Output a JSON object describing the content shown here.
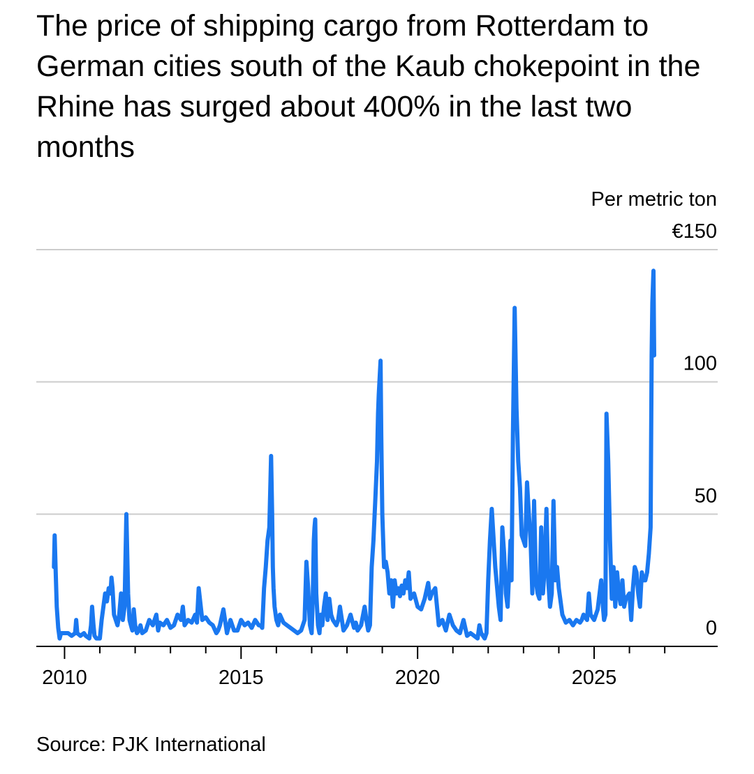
{
  "chart_data": {
    "type": "line",
    "title": "The price of shipping cargo from Rotterdam to German cities south of the Kaub chokepoint in the Rhine has surged about 400% in the last two months",
    "ylabel": "Per metric ton",
    "ylim": [
      0,
      150
    ],
    "xlim": [
      2009.2,
      2028.5
    ],
    "y_ticks": [
      {
        "value": 0,
        "label": "0"
      },
      {
        "value": 50,
        "label": "50"
      },
      {
        "value": 100,
        "label": "100"
      },
      {
        "value": 150,
        "label": "€150"
      }
    ],
    "x_major_ticks": [
      {
        "value": 2010,
        "label": "2010"
      },
      {
        "value": 2015,
        "label": "2015"
      },
      {
        "value": 2020,
        "label": "2020"
      },
      {
        "value": 2025,
        "label": "2025"
      }
    ],
    "x_minor_ticks": [
      2011,
      2012,
      2013,
      2014,
      2016,
      2017,
      2018,
      2019,
      2021,
      2022,
      2023,
      2024,
      2026,
      2027
    ],
    "grid": true,
    "legend": "none",
    "line_color": "#1a78f0",
    "series": [
      {
        "x": [
          2009.7,
          2009.72,
          2009.75,
          2009.78,
          2009.82,
          2009.86,
          2009.9,
          2010.0,
          2010.1,
          2010.2,
          2010.3,
          2010.33,
          2010.36,
          2010.45,
          2010.55,
          2010.6,
          2010.7,
          2010.75,
          2010.78,
          2010.82,
          2010.85,
          2010.9,
          2011.0,
          2011.05,
          2011.1,
          2011.15,
          2011.2,
          2011.25,
          2011.3,
          2011.33,
          2011.36,
          2011.4,
          2011.45,
          2011.5,
          2011.55,
          2011.6,
          2011.65,
          2011.7,
          2011.75,
          2011.8,
          2011.84,
          2011.88,
          2011.92,
          2011.96,
          2012.0,
          2012.05,
          2012.1,
          2012.15,
          2012.2,
          2012.3,
          2012.4,
          2012.5,
          2012.6,
          2012.65,
          2012.7,
          2012.8,
          2012.9,
          2013.0,
          2013.1,
          2013.2,
          2013.3,
          2013.35,
          2013.4,
          2013.5,
          2013.6,
          2013.7,
          2013.75,
          2013.8,
          2013.9,
          2014.0,
          2014.1,
          2014.2,
          2014.3,
          2014.35,
          2014.4,
          2014.5,
          2014.6,
          2014.7,
          2014.8,
          2014.9,
          2015.0,
          2015.1,
          2015.2,
          2015.3,
          2015.4,
          2015.5,
          2015.55,
          2015.6,
          2015.65,
          2015.7,
          2015.75,
          2015.8,
          2015.85,
          2015.88,
          2015.9,
          2015.92,
          2015.95,
          2016.0,
          2016.05,
          2016.1,
          2016.2,
          2016.3,
          2016.4,
          2016.5,
          2016.6,
          2016.7,
          2016.75,
          2016.8,
          2016.85,
          2016.9,
          2016.95,
          2017.0,
          2017.03,
          2017.06,
          2017.08,
          2017.1,
          2017.13,
          2017.18,
          2017.22,
          2017.26,
          2017.3,
          2017.35,
          2017.4,
          2017.45,
          2017.5,
          2017.55,
          2017.6,
          2017.7,
          2017.75,
          2017.8,
          2017.9,
          2018.0,
          2018.1,
          2018.2,
          2018.25,
          2018.3,
          2018.4,
          2018.5,
          2018.55,
          2018.6,
          2018.65,
          2018.7,
          2018.75,
          2018.8,
          2018.85,
          2018.88,
          2018.9,
          2018.92,
          2018.95,
          2018.97,
          2019.0,
          2019.05,
          2019.1,
          2019.15,
          2019.2,
          2019.25,
          2019.3,
          2019.35,
          2019.4,
          2019.45,
          2019.5,
          2019.55,
          2019.6,
          2019.65,
          2019.7,
          2019.75,
          2019.8,
          2019.9,
          2020.0,
          2020.1,
          2020.2,
          2020.3,
          2020.35,
          2020.4,
          2020.5,
          2020.6,
          2020.7,
          2020.8,
          2020.9,
          2021.0,
          2021.1,
          2021.2,
          2021.3,
          2021.4,
          2021.5,
          2021.6,
          2021.7,
          2021.75,
          2021.8,
          2021.85,
          2021.9,
          2021.95,
          2022.0,
          2022.05,
          2022.1,
          2022.2,
          2022.3,
          2022.35,
          2022.4,
          2022.45,
          2022.5,
          2022.55,
          2022.6,
          2022.63,
          2022.66,
          2022.7,
          2022.75,
          2022.8,
          2022.85,
          2022.9,
          2022.95,
          2023.0,
          2023.05,
          2023.1,
          2023.15,
          2023.2,
          2023.25,
          2023.3,
          2023.35,
          2023.4,
          2023.45,
          2023.5,
          2023.55,
          2023.6,
          2023.65,
          2023.7,
          2023.75,
          2023.8,
          2023.85,
          2023.9,
          2023.95,
          2024.0,
          2024.1,
          2024.2,
          2024.3,
          2024.4,
          2024.5,
          2024.6,
          2024.65,
          2024.7,
          2024.8,
          2024.85,
          2024.9,
          2025.0,
          2025.1,
          2025.2,
          2025.25,
          2025.28,
          2025.32,
          2025.35,
          2025.4,
          2025.45,
          2025.5,
          2025.55,
          2025.6,
          2025.65,
          2025.7,
          2025.75,
          2025.8,
          2025.85,
          2025.9,
          2026.0,
          2026.05,
          2026.1,
          2026.15,
          2026.2,
          2026.25,
          2026.3,
          2026.35,
          2026.4,
          2026.45,
          2026.5,
          2026.55,
          2026.6,
          2026.63,
          2026.65,
          2026.68,
          2026.7
        ],
        "y": [
          30,
          42,
          28,
          15,
          7,
          3,
          5,
          5,
          5,
          4,
          5,
          10,
          5,
          4,
          5,
          4,
          3,
          8,
          15,
          8,
          4,
          3,
          3,
          10,
          15,
          20,
          17,
          22,
          20,
          26,
          22,
          12,
          10,
          8,
          12,
          20,
          10,
          15,
          50,
          20,
          10,
          8,
          6,
          14,
          8,
          5,
          6,
          8,
          5,
          6,
          10,
          8,
          12,
          6,
          9,
          8,
          10,
          7,
          8,
          12,
          10,
          15,
          8,
          10,
          9,
          12,
          9,
          22,
          10,
          11,
          9,
          8,
          5,
          6,
          8,
          14,
          5,
          10,
          6,
          6,
          10,
          8,
          9,
          7,
          10,
          8,
          8,
          7,
          22,
          30,
          40,
          45,
          72,
          50,
          30,
          22,
          15,
          10,
          8,
          12,
          9,
          8,
          7,
          6,
          5,
          6,
          8,
          10,
          32,
          22,
          8,
          5,
          18,
          40,
          45,
          48,
          20,
          8,
          5,
          12,
          8,
          15,
          20,
          10,
          18,
          12,
          10,
          8,
          10,
          15,
          6,
          8,
          12,
          7,
          9,
          6,
          8,
          15,
          10,
          6,
          8,
          30,
          40,
          55,
          70,
          88,
          95,
          100,
          108,
          80,
          50,
          30,
          32,
          28,
          20,
          25,
          15,
          25,
          20,
          22,
          19,
          23,
          20,
          25,
          22,
          28,
          18,
          20,
          15,
          14,
          18,
          24,
          18,
          20,
          22,
          8,
          10,
          6,
          12,
          8,
          6,
          5,
          10,
          4,
          5,
          4,
          3,
          8,
          5,
          4,
          3,
          5,
          25,
          40,
          52,
          30,
          15,
          10,
          45,
          35,
          20,
          15,
          30,
          40,
          25,
          80,
          128,
          90,
          70,
          60,
          42,
          40,
          38,
          62,
          50,
          40,
          20,
          55,
          25,
          20,
          18,
          45,
          20,
          30,
          52,
          25,
          15,
          20,
          55,
          25,
          30,
          22,
          12,
          9,
          10,
          8,
          10,
          9,
          10,
          12,
          10,
          20,
          12,
          10,
          14,
          25,
          15,
          10,
          12,
          88,
          70,
          40,
          18,
          30,
          15,
          28,
          20,
          16,
          25,
          15,
          18,
          20,
          10,
          22,
          30,
          28,
          20,
          15,
          28,
          25,
          25,
          28,
          35,
          45,
          110,
          130,
          142,
          110
        ]
      }
    ],
    "source": "Source: PJK International"
  }
}
